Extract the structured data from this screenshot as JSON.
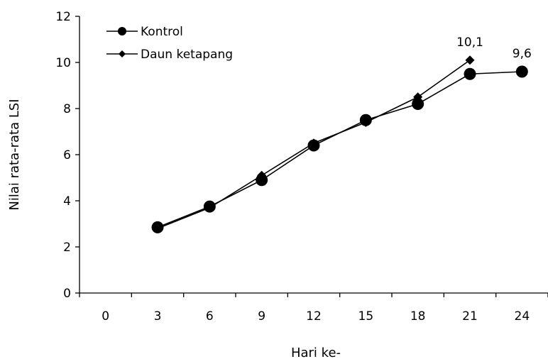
{
  "chart_data": {
    "type": "line",
    "title": "",
    "xlabel": "Hari ke-",
    "ylabel": "Nilai rata-rata LSI",
    "categories": [
      "0",
      "3",
      "6",
      "9",
      "12",
      "15",
      "18",
      "21",
      "24"
    ],
    "yticks": [
      "0",
      "2",
      "4",
      "6",
      "8",
      "10",
      "12"
    ],
    "ylim": [
      0,
      12
    ],
    "grid": false,
    "legend_position": "top-left",
    "series": [
      {
        "name": "Kontrol",
        "marker": "circle",
        "values": [
          null,
          2.85,
          3.75,
          4.9,
          6.4,
          7.5,
          8.2,
          9.5,
          9.6
        ]
      },
      {
        "name": "Daun ketapang",
        "marker": "diamond",
        "values": [
          null,
          2.8,
          3.7,
          5.1,
          6.5,
          7.4,
          8.5,
          10.1,
          null
        ]
      }
    ],
    "annotations": [
      {
        "text": "10,1",
        "category": "21",
        "value": 10.1
      },
      {
        "text": "9,6",
        "category": "24",
        "value": 9.6
      }
    ]
  }
}
